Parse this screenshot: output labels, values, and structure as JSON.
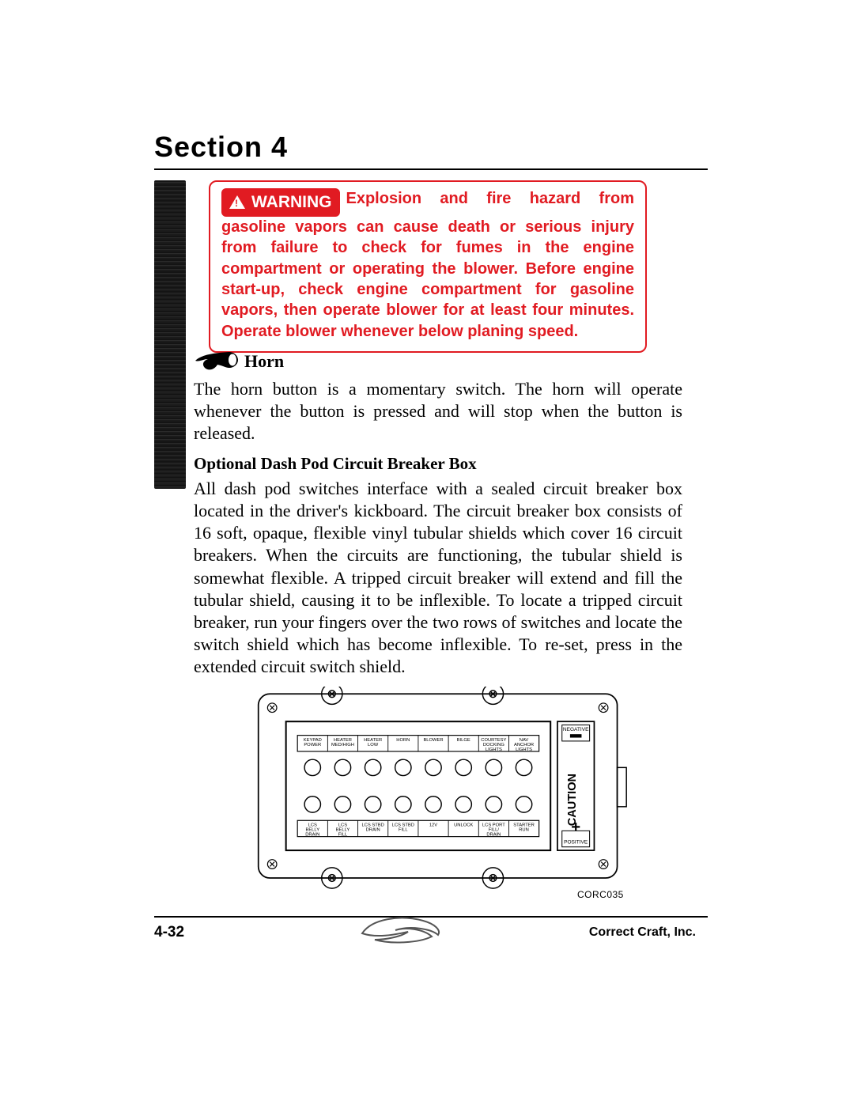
{
  "section_title": "Section 4",
  "warning": {
    "pill_label": "WARNING",
    "text": "Explosion and fire hazard from gasoline vapors can cause death or serious injury from failure to check for fumes in the engine compartment or operating the blower. Before engine start-up, check engine compartment for gasoline vapors, then operate blower for at least four minutes. Operate blower whenever below planing speed.",
    "border_color": "#e11b22",
    "text_color": "#e11b22"
  },
  "horn": {
    "heading": "Horn",
    "body": "The horn button is a momentary switch. The horn will operate whenever the button is pressed and will stop when the button is released."
  },
  "optional": {
    "heading": "Optional Dash Pod Circuit Breaker Box",
    "body": "All dash pod switches interface with a sealed circuit breaker box located in the driver's kickboard. The circuit breaker box consists of 16 soft, opaque, flexible vinyl tubular shields which cover 16 circuit breakers. When the circuits are functioning, the tubular shield is somewhat flexible. A tripped circuit breaker will extend and fill the tubular shield, causing it to be inflexible. To locate a tripped circuit breaker, run your fingers over the two rows of switches and locate the switch shield which has become inflexible. To re-set, press in the extended circuit switch shield."
  },
  "diagram": {
    "labels_top": [
      "KEYPAD POWER",
      "HEATER MED/HIGH",
      "HEATER LOW",
      "HORN",
      "BLOWER",
      "BILGE",
      "COURTESY DOCKING LIGHTS",
      "NAV ANCHOR LIGHTS"
    ],
    "labels_bottom": [
      "LCS BELLY DRAIN",
      "LCS BELLY FILL",
      "LCS STBD DRAIN",
      "LCS STBD FILL",
      "12V",
      "UNLOCK",
      "LCS PORT FILL/ DRAIN",
      "STARTER RUN"
    ],
    "caution": "CAUTION",
    "negative": "NEGATIVE",
    "positive": "POSITIVE",
    "ref": "CORC035"
  },
  "footer": {
    "page": "4-32",
    "company": "Correct Craft, Inc."
  },
  "colors": {
    "red": "#e11b22",
    "black": "#000000"
  }
}
